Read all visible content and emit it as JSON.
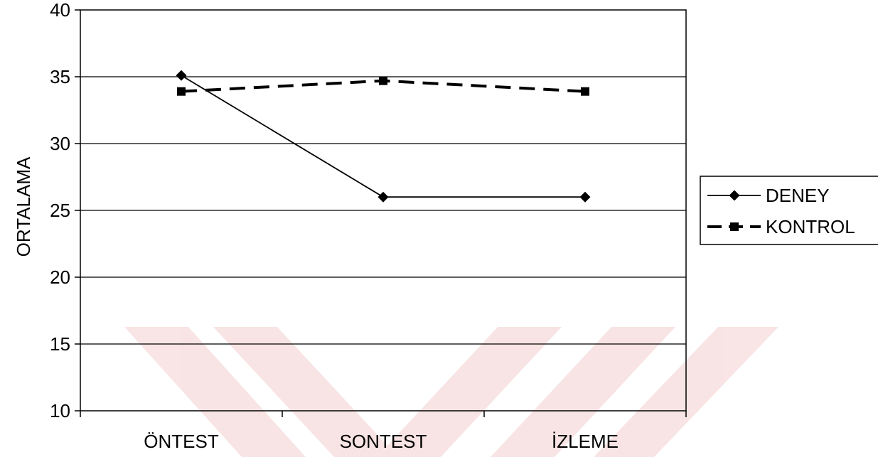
{
  "chart_data": {
    "type": "line",
    "categories": [
      "ÖNTEST",
      "SONTEST",
      "İZLEME"
    ],
    "series": [
      {
        "name": "DENEY",
        "values": [
          35.1,
          26.0,
          26.0
        ],
        "color": "#000000",
        "marker": "diamond",
        "line": "solid"
      },
      {
        "name": "KONTROL",
        "values": [
          33.9,
          34.7,
          33.9
        ],
        "color": "#000000",
        "marker": "square",
        "line": "dashed"
      }
    ],
    "title": "",
    "xlabel": "",
    "ylabel": "ORTALAMA",
    "ylim": [
      10,
      40
    ],
    "yticks": [
      10,
      15,
      20,
      25,
      30,
      35,
      40
    ],
    "grid": true,
    "legend_position": "right"
  }
}
